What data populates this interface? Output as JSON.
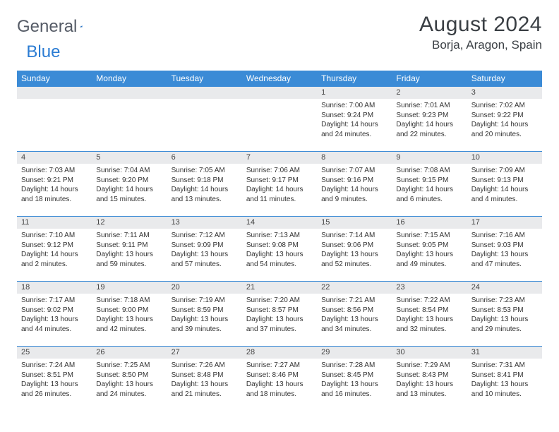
{
  "logo": {
    "text1": "General",
    "text2": "Blue"
  },
  "title": "August 2024",
  "location": "Borja, Aragon, Spain",
  "colors": {
    "header_bg": "#3b8bd6",
    "header_text": "#ffffff",
    "daynum_bg": "#e9eaec",
    "rule": "#3b8bd6",
    "logo_gray": "#555b66",
    "logo_blue": "#2b7cd3"
  },
  "weekdays": [
    "Sunday",
    "Monday",
    "Tuesday",
    "Wednesday",
    "Thursday",
    "Friday",
    "Saturday"
  ],
  "weeks": [
    [
      null,
      null,
      null,
      null,
      {
        "n": "1",
        "sr": "7:00 AM",
        "ss": "9:24 PM",
        "dl": "14 hours and 24 minutes."
      },
      {
        "n": "2",
        "sr": "7:01 AM",
        "ss": "9:23 PM",
        "dl": "14 hours and 22 minutes."
      },
      {
        "n": "3",
        "sr": "7:02 AM",
        "ss": "9:22 PM",
        "dl": "14 hours and 20 minutes."
      }
    ],
    [
      {
        "n": "4",
        "sr": "7:03 AM",
        "ss": "9:21 PM",
        "dl": "14 hours and 18 minutes."
      },
      {
        "n": "5",
        "sr": "7:04 AM",
        "ss": "9:20 PM",
        "dl": "14 hours and 15 minutes."
      },
      {
        "n": "6",
        "sr": "7:05 AM",
        "ss": "9:18 PM",
        "dl": "14 hours and 13 minutes."
      },
      {
        "n": "7",
        "sr": "7:06 AM",
        "ss": "9:17 PM",
        "dl": "14 hours and 11 minutes."
      },
      {
        "n": "8",
        "sr": "7:07 AM",
        "ss": "9:16 PM",
        "dl": "14 hours and 9 minutes."
      },
      {
        "n": "9",
        "sr": "7:08 AM",
        "ss": "9:15 PM",
        "dl": "14 hours and 6 minutes."
      },
      {
        "n": "10",
        "sr": "7:09 AM",
        "ss": "9:13 PM",
        "dl": "14 hours and 4 minutes."
      }
    ],
    [
      {
        "n": "11",
        "sr": "7:10 AM",
        "ss": "9:12 PM",
        "dl": "14 hours and 2 minutes."
      },
      {
        "n": "12",
        "sr": "7:11 AM",
        "ss": "9:11 PM",
        "dl": "13 hours and 59 minutes."
      },
      {
        "n": "13",
        "sr": "7:12 AM",
        "ss": "9:09 PM",
        "dl": "13 hours and 57 minutes."
      },
      {
        "n": "14",
        "sr": "7:13 AM",
        "ss": "9:08 PM",
        "dl": "13 hours and 54 minutes."
      },
      {
        "n": "15",
        "sr": "7:14 AM",
        "ss": "9:06 PM",
        "dl": "13 hours and 52 minutes."
      },
      {
        "n": "16",
        "sr": "7:15 AM",
        "ss": "9:05 PM",
        "dl": "13 hours and 49 minutes."
      },
      {
        "n": "17",
        "sr": "7:16 AM",
        "ss": "9:03 PM",
        "dl": "13 hours and 47 minutes."
      }
    ],
    [
      {
        "n": "18",
        "sr": "7:17 AM",
        "ss": "9:02 PM",
        "dl": "13 hours and 44 minutes."
      },
      {
        "n": "19",
        "sr": "7:18 AM",
        "ss": "9:00 PM",
        "dl": "13 hours and 42 minutes."
      },
      {
        "n": "20",
        "sr": "7:19 AM",
        "ss": "8:59 PM",
        "dl": "13 hours and 39 minutes."
      },
      {
        "n": "21",
        "sr": "7:20 AM",
        "ss": "8:57 PM",
        "dl": "13 hours and 37 minutes."
      },
      {
        "n": "22",
        "sr": "7:21 AM",
        "ss": "8:56 PM",
        "dl": "13 hours and 34 minutes."
      },
      {
        "n": "23",
        "sr": "7:22 AM",
        "ss": "8:54 PM",
        "dl": "13 hours and 32 minutes."
      },
      {
        "n": "24",
        "sr": "7:23 AM",
        "ss": "8:53 PM",
        "dl": "13 hours and 29 minutes."
      }
    ],
    [
      {
        "n": "25",
        "sr": "7:24 AM",
        "ss": "8:51 PM",
        "dl": "13 hours and 26 minutes."
      },
      {
        "n": "26",
        "sr": "7:25 AM",
        "ss": "8:50 PM",
        "dl": "13 hours and 24 minutes."
      },
      {
        "n": "27",
        "sr": "7:26 AM",
        "ss": "8:48 PM",
        "dl": "13 hours and 21 minutes."
      },
      {
        "n": "28",
        "sr": "7:27 AM",
        "ss": "8:46 PM",
        "dl": "13 hours and 18 minutes."
      },
      {
        "n": "29",
        "sr": "7:28 AM",
        "ss": "8:45 PM",
        "dl": "13 hours and 16 minutes."
      },
      {
        "n": "30",
        "sr": "7:29 AM",
        "ss": "8:43 PM",
        "dl": "13 hours and 13 minutes."
      },
      {
        "n": "31",
        "sr": "7:31 AM",
        "ss": "8:41 PM",
        "dl": "13 hours and 10 minutes."
      }
    ]
  ],
  "labels": {
    "sunrise": "Sunrise:",
    "sunset": "Sunset:",
    "daylight": "Daylight:"
  }
}
